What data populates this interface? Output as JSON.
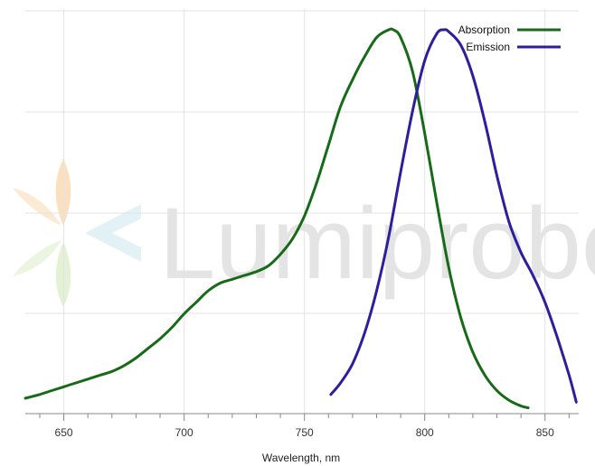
{
  "chart_data": {
    "type": "line",
    "title": "",
    "xlabel": "Wavelength, nm",
    "ylabel": "",
    "xlim": [
      634,
      864
    ],
    "ylim": [
      0,
      1.04
    ],
    "xticks": [
      650,
      700,
      750,
      800,
      850
    ],
    "grid": true,
    "legend_position": "top-right",
    "watermark": {
      "text": "Lumiprobe",
      "logo": "leaf-arrow-logo"
    },
    "series": [
      {
        "name": "Absorption",
        "color": "#176a17",
        "x": [
          634,
          640,
          645,
          650,
          655,
          660,
          665,
          670,
          675,
          680,
          685,
          690,
          695,
          700,
          705,
          710,
          715,
          720,
          725,
          730,
          735,
          740,
          745,
          750,
          755,
          760,
          765,
          770,
          775,
          780,
          785,
          787,
          790,
          795,
          800,
          805,
          810,
          815,
          820,
          825,
          830,
          835,
          840,
          843
        ],
        "y": [
          0.04,
          0.05,
          0.06,
          0.07,
          0.08,
          0.09,
          0.1,
          0.11,
          0.125,
          0.145,
          0.17,
          0.195,
          0.225,
          0.26,
          0.29,
          0.32,
          0.34,
          0.35,
          0.36,
          0.37,
          0.385,
          0.415,
          0.455,
          0.515,
          0.6,
          0.7,
          0.8,
          0.87,
          0.93,
          0.98,
          1.0,
          1.0,
          0.98,
          0.89,
          0.73,
          0.55,
          0.38,
          0.25,
          0.16,
          0.1,
          0.06,
          0.035,
          0.02,
          0.015
        ]
      },
      {
        "name": "Emission",
        "color": "#2c1f9e",
        "x": [
          761,
          765,
          770,
          775,
          780,
          785,
          790,
          795,
          800,
          805,
          808,
          810,
          815,
          820,
          825,
          830,
          835,
          840,
          845,
          850,
          855,
          860,
          863
        ],
        "y": [
          0.05,
          0.08,
          0.13,
          0.21,
          0.32,
          0.46,
          0.63,
          0.79,
          0.92,
          0.99,
          1.0,
          0.995,
          0.96,
          0.88,
          0.76,
          0.62,
          0.5,
          0.42,
          0.36,
          0.29,
          0.2,
          0.1,
          0.03
        ]
      }
    ]
  }
}
